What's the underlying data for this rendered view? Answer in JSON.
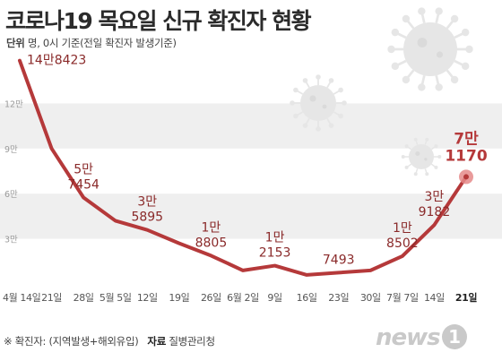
{
  "title": "코로나19 목요일 신규 확진자 현황",
  "subtitle": {
    "unit_label": "단위",
    "unit_text": "명, 0시 기준(전일 확진자 발생기준)"
  },
  "footer": {
    "note": "※ 확진자: (지역발생+해외유입)",
    "source_label": "자료",
    "source": "질병관리청"
  },
  "logo": {
    "text": "news",
    "mark": "1"
  },
  "colors": {
    "line": "#b5393a",
    "label": "#8a2a2a",
    "band": "#efefef",
    "axis_label": "#9a9a9a",
    "virus": "#e6e6e6",
    "highlight_dot": "#e58a8a"
  },
  "chart_data": {
    "type": "line",
    "title": "코로나19 목요일 신규 확진자 현황",
    "x": [
      "4월 14일",
      "21일",
      "28일",
      "5월 5일",
      "12일",
      "19일",
      "26일",
      "6월 2일",
      "9일",
      "16일",
      "23일",
      "30일",
      "7월 7일",
      "14일",
      "21일"
    ],
    "y": [
      148423,
      90000,
      57454,
      42000,
      35895,
      27000,
      18805,
      9000,
      12153,
      6000,
      7493,
      9000,
      18502,
      39182,
      71170
    ],
    "y_ticks": [
      30000,
      60000,
      90000,
      120000
    ],
    "y_tick_labels": [
      "3만",
      "6만",
      "9만",
      "12만"
    ],
    "ylim": [
      0,
      150000
    ],
    "labeled_points": [
      {
        "index": 0,
        "lines": [
          "14만8423"
        ]
      },
      {
        "index": 2,
        "lines": [
          "5만",
          "7454"
        ]
      },
      {
        "index": 4,
        "lines": [
          "3만",
          "5895"
        ]
      },
      {
        "index": 6,
        "lines": [
          "1만",
          "8805"
        ]
      },
      {
        "index": 8,
        "lines": [
          "1만",
          "2153"
        ]
      },
      {
        "index": 10,
        "lines": [
          "7493"
        ]
      },
      {
        "index": 12,
        "lines": [
          "1만",
          "8502"
        ]
      },
      {
        "index": 13,
        "lines": [
          "3만",
          "9182"
        ]
      },
      {
        "index": 14,
        "lines": [
          "7만",
          "1170"
        ],
        "highlight": true
      }
    ],
    "grid": "alternating-bands",
    "legend": "none"
  }
}
